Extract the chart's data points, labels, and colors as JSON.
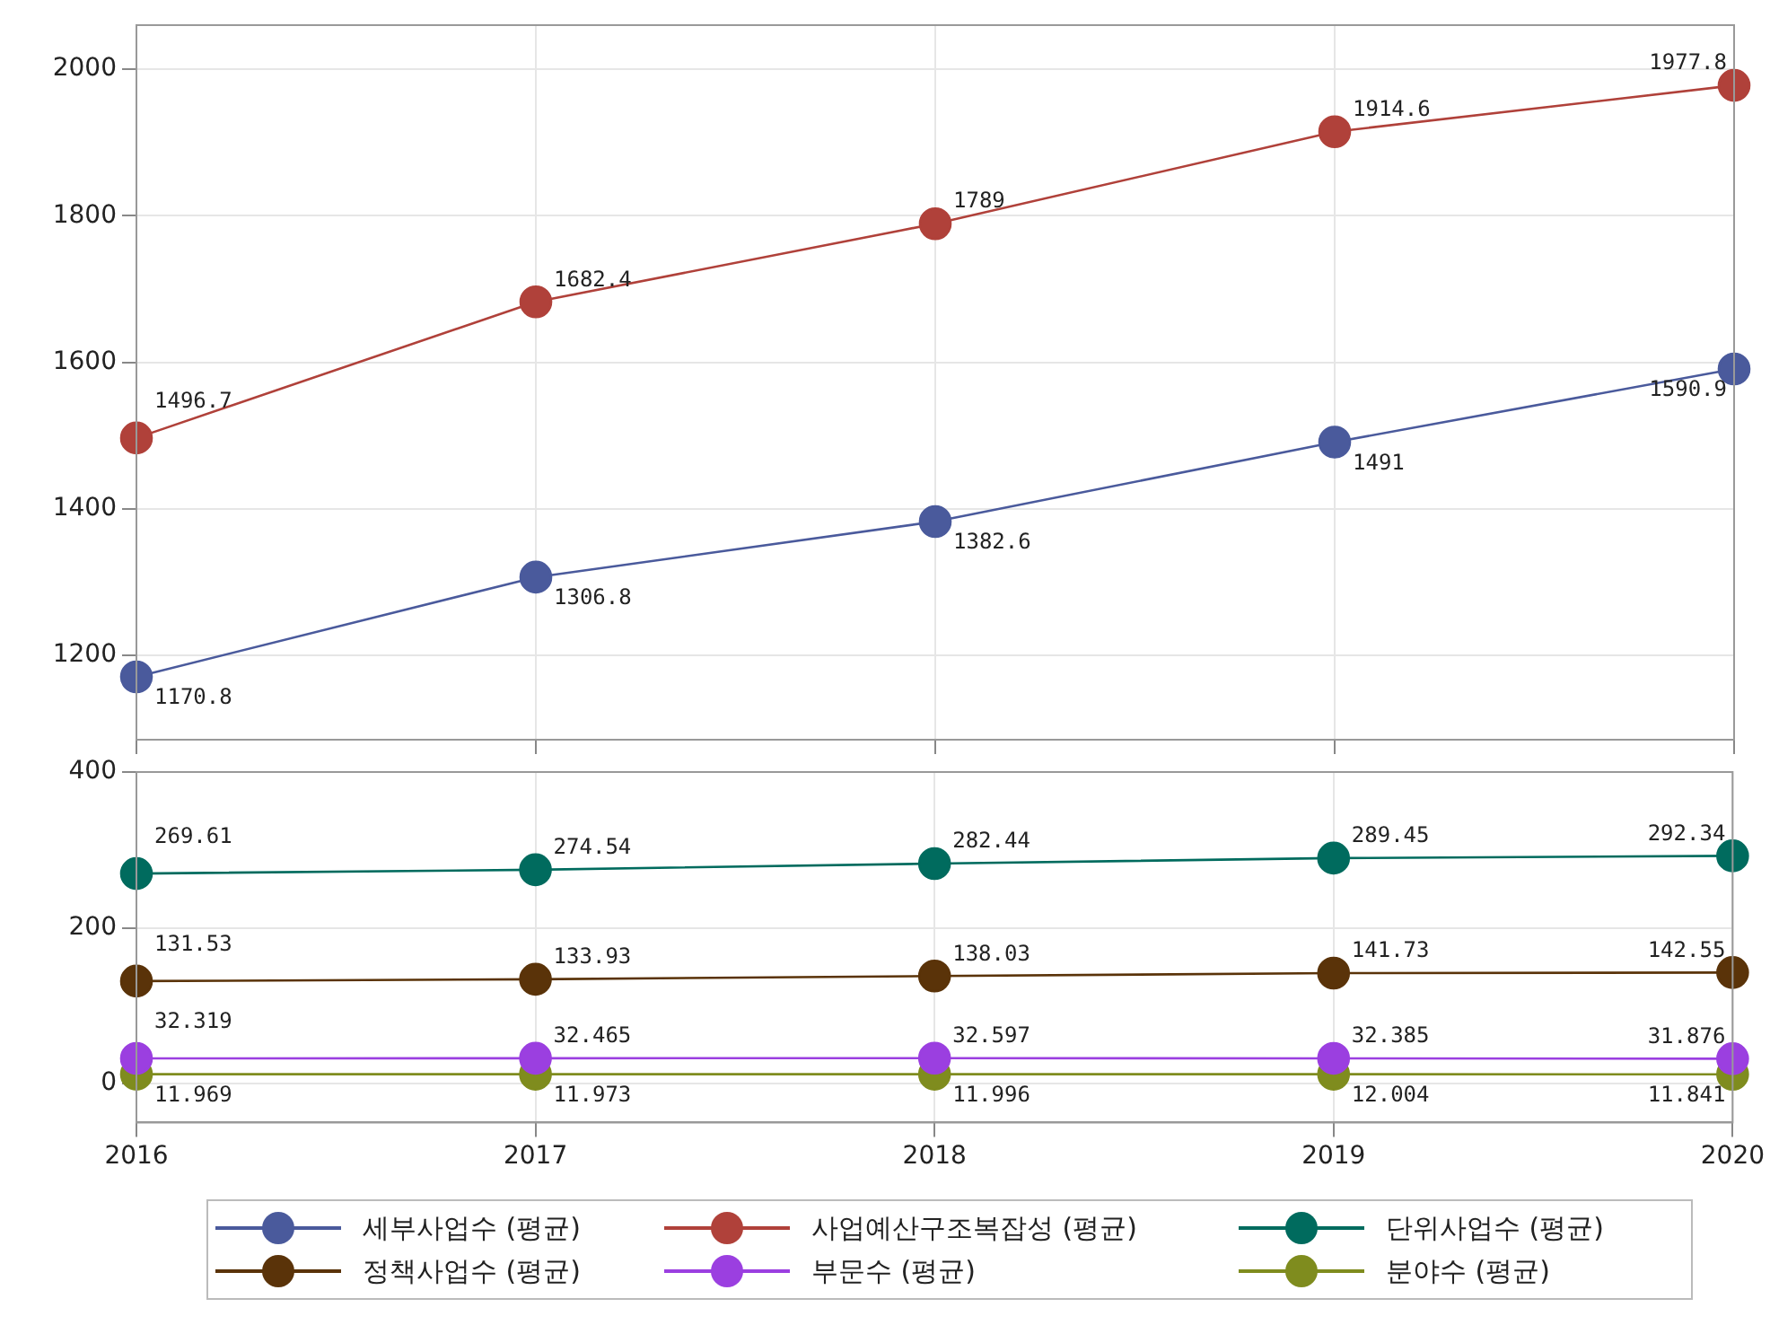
{
  "chart_data": [
    {
      "type": "line",
      "categories": [
        "2016",
        "2017",
        "2018",
        "2019",
        "2020"
      ],
      "ylim": [
        1085,
        2060
      ],
      "yticks": [
        1200,
        1400,
        1600,
        1800,
        2000
      ],
      "grid": true,
      "tick_labels": "y",
      "marker": "circle",
      "data_labels": true,
      "legend": "bottom",
      "series": [
        {
          "name": "세부사업수 (평균)",
          "color": "#4a5a9c",
          "values": [
            1170.8,
            1306.8,
            1382.6,
            1491,
            1590.9
          ]
        },
        {
          "name": "사업예산구조복잡성 (평균)",
          "color": "#b0413a",
          "values": [
            1496.7,
            1682.4,
            1789,
            1914.6,
            1977.8
          ]
        }
      ]
    },
    {
      "type": "line",
      "categories": [
        "2016",
        "2017",
        "2018",
        "2019",
        "2020"
      ],
      "ylim": [
        -50,
        400
      ],
      "yticks": [
        0,
        200,
        400
      ],
      "grid": true,
      "marker": "circle",
      "data_labels": true,
      "legend": "bottom",
      "series": [
        {
          "name": "단위사업수 (평균)",
          "color": "#006b5e",
          "values": [
            269.61,
            274.54,
            282.44,
            289.45,
            292.34
          ]
        },
        {
          "name": "정책사업수 (평균)",
          "color": "#5a3309",
          "values": [
            131.53,
            133.93,
            138.03,
            141.73,
            142.55
          ]
        },
        {
          "name": "부문수 (평균)",
          "color": "#9b3fe0",
          "values": [
            32.319,
            32.465,
            32.597,
            32.385,
            31.876
          ]
        },
        {
          "name": "분야수 (평균)",
          "color": "#7f8c1e",
          "values": [
            11.969,
            11.973,
            11.996,
            12.004,
            11.841
          ]
        }
      ]
    }
  ]
}
